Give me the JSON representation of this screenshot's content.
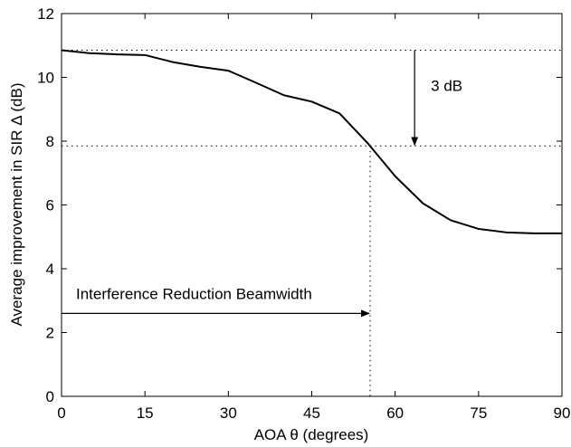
{
  "chart_data": {
    "type": "line",
    "title": "",
    "xlabel": "AOA θ (degrees)",
    "ylabel": "Average improvement in SIR  Δ (dB)",
    "xlim": [
      0,
      90
    ],
    "ylim": [
      0,
      12
    ],
    "xticks": [
      0,
      15,
      30,
      45,
      60,
      75,
      90
    ],
    "yticks": [
      0,
      2,
      4,
      6,
      8,
      10,
      12
    ],
    "grid": false,
    "series": [
      {
        "x": [
          0,
          5,
          10,
          15,
          20,
          25,
          30,
          35,
          40,
          45,
          50,
          55,
          60,
          65,
          70,
          75,
          80,
          85,
          90
        ],
        "y": [
          10.85,
          10.76,
          10.72,
          10.7,
          10.48,
          10.33,
          10.21,
          9.83,
          9.44,
          9.24,
          8.87,
          7.95,
          6.9,
          6.05,
          5.52,
          5.25,
          5.14,
          5.11,
          5.11
        ]
      }
    ],
    "reference_lines": {
      "horizontal": [
        10.85,
        7.85
      ],
      "vertical": [
        55.5
      ]
    },
    "annotations": {
      "drop_label": "3 dB",
      "drop_arrow": {
        "x": 63.5,
        "y_from": 10.85,
        "y_to": 7.85
      },
      "beamwidth_label": "Interference Reduction Beamwidth",
      "beamwidth_arrow": {
        "x_from": 0,
        "x_to": 55.5,
        "y": 2.6
      }
    },
    "colors": {
      "line": "#000000",
      "background": "#ffffff"
    }
  }
}
